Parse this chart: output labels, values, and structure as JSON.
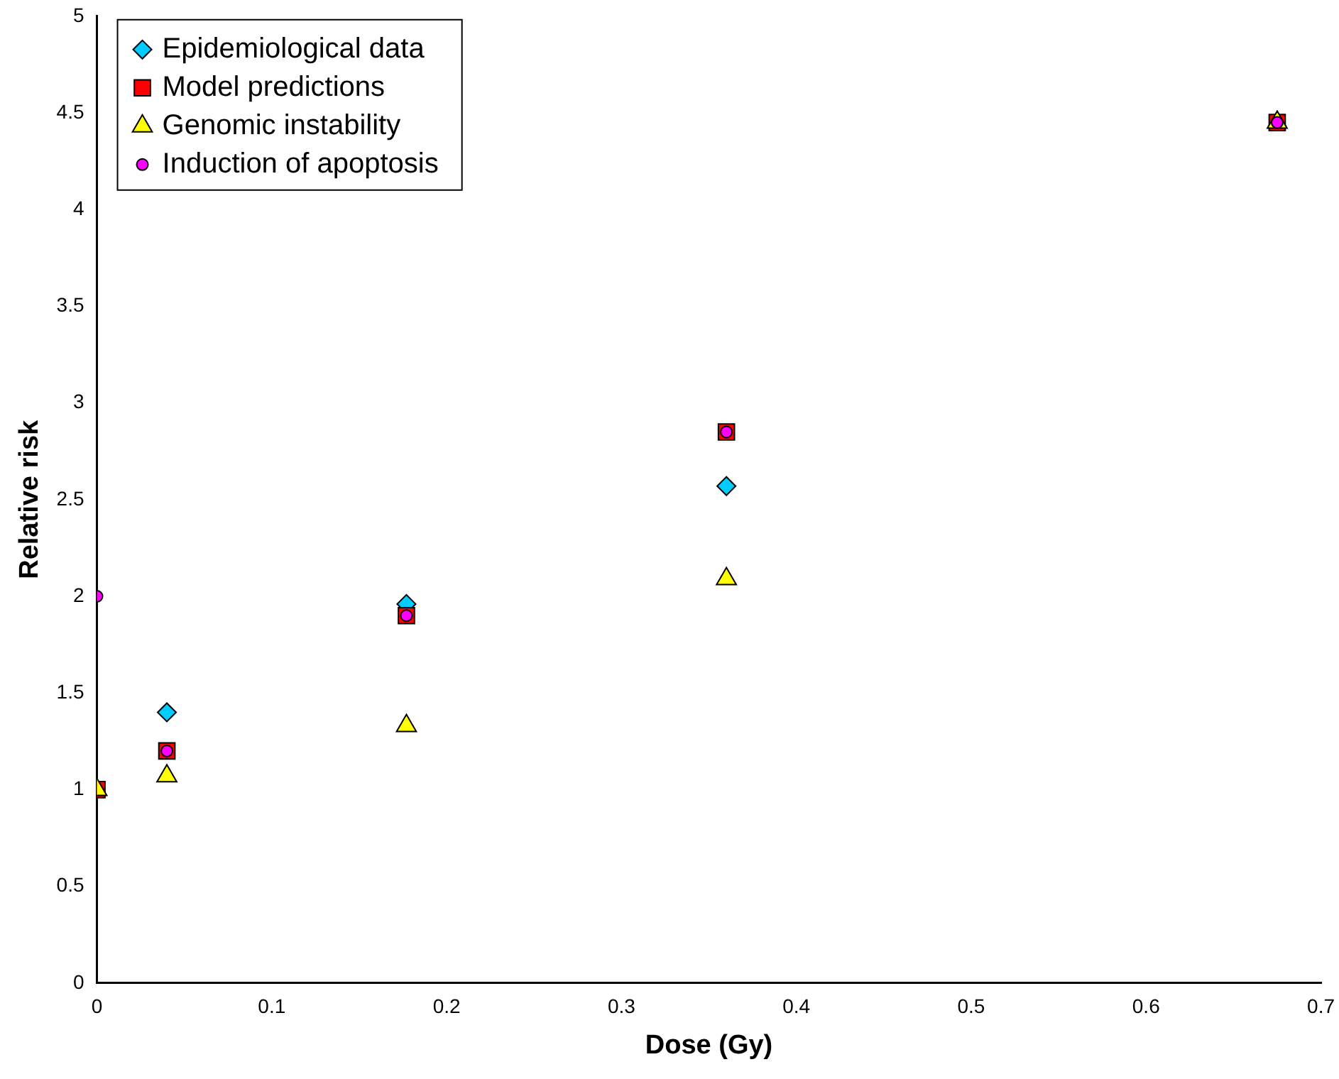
{
  "chart_data": {
    "type": "scatter",
    "xlabel": "Dose (Gy)",
    "ylabel": "Relative risk",
    "x": [
      0,
      0.04,
      0.177,
      0.36,
      0.675
    ],
    "series": [
      {
        "name": "Epidemiological data",
        "color": "#00ccff",
        "marker": "diamond",
        "values": [
          null,
          1.4,
          1.96,
          2.57,
          null
        ]
      },
      {
        "name": "Model predictions",
        "color": "#ff0000",
        "marker": "square",
        "values": [
          1,
          1.2,
          1.9,
          2.85,
          4.45
        ]
      },
      {
        "name": "Genomic instability",
        "color": "#ffff00",
        "marker": "triangle",
        "values": [
          1,
          1.07,
          1.33,
          2.09,
          4.45
        ]
      },
      {
        "name": "Induction of apoptosis",
        "color": "#ff00ff",
        "marker": "circle",
        "values": [
          2,
          1.2,
          1.9,
          2.85,
          4.45
        ]
      }
    ],
    "xlim": [
      0,
      0.7
    ],
    "xticks": [
      0,
      0.1,
      0.2,
      0.3,
      0.4,
      0.5,
      0.6,
      0.7
    ],
    "ylim": [
      0,
      5
    ],
    "yticks": [
      0,
      0.5,
      1,
      1.5,
      2,
      2.5,
      3,
      3.5,
      4,
      4.5,
      5
    ],
    "grid": false,
    "legend": "top left"
  }
}
